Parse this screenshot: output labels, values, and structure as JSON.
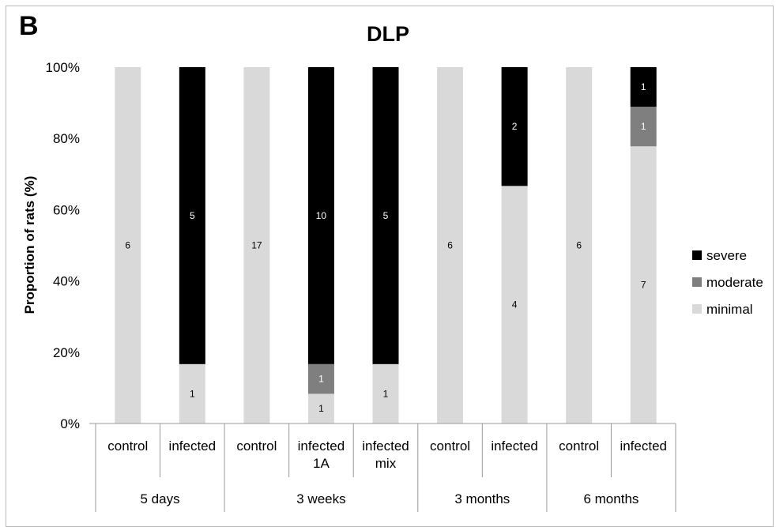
{
  "panel_letter": "B",
  "chart_data": {
    "type": "bar",
    "stacked": true,
    "percent_stacked": true,
    "title": "DLP",
    "ylabel": "Proportion of rats (%)",
    "xlabel": "",
    "ylim": [
      0,
      100
    ],
    "yticks": [
      "0%",
      "20%",
      "40%",
      "60%",
      "80%",
      "100%"
    ],
    "categories": [
      {
        "label": [
          "control"
        ],
        "group": "5 days"
      },
      {
        "label": [
          "infected"
        ],
        "group": "5 days"
      },
      {
        "label": [
          "control"
        ],
        "group": "3 weeks"
      },
      {
        "label": [
          "infected",
          "1A"
        ],
        "group": "3 weeks"
      },
      {
        "label": [
          "infected",
          "mix"
        ],
        "group": "3 weeks"
      },
      {
        "label": [
          "control"
        ],
        "group": "3 months"
      },
      {
        "label": [
          "infected"
        ],
        "group": "3 months"
      },
      {
        "label": [
          "control"
        ],
        "group": "6 months"
      },
      {
        "label": [
          "infected"
        ],
        "group": "6 months"
      }
    ],
    "groups": [
      {
        "name": "5 days",
        "count": 2
      },
      {
        "name": "3 weeks",
        "count": 3
      },
      {
        "name": "3 months",
        "count": 2
      },
      {
        "name": "6 months",
        "count": 2
      }
    ],
    "series": [
      {
        "name": "minimal",
        "color": "#d9d9d9",
        "label_color": "#000000",
        "values": [
          6,
          1,
          17,
          1,
          1,
          6,
          4,
          6,
          7
        ]
      },
      {
        "name": "moderate",
        "color": "#7f7f7f",
        "label_color": "#ffffff",
        "values": [
          0,
          0,
          0,
          1,
          0,
          0,
          0,
          0,
          1
        ]
      },
      {
        "name": "severe",
        "color": "#000000",
        "label_color": "#ffffff",
        "values": [
          0,
          5,
          0,
          10,
          5,
          0,
          2,
          0,
          1
        ]
      }
    ],
    "legend": {
      "position": "right",
      "order": [
        "severe",
        "moderate",
        "minimal"
      ]
    },
    "grid": false
  }
}
